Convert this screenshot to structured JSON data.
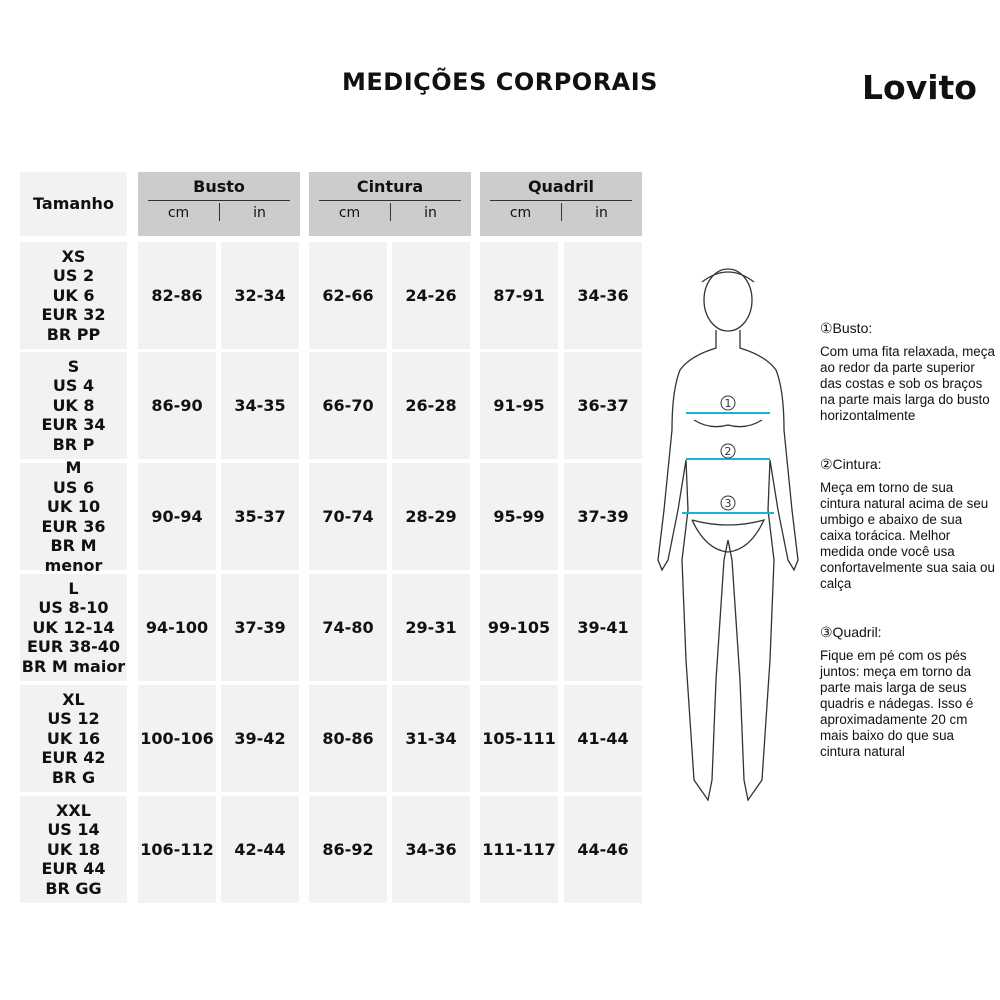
{
  "title": "MEDIÇÕES CORPORAIS",
  "brand": "Lovito",
  "header": {
    "size": "Tamanho",
    "groups": [
      "Busto",
      "Cintura",
      "Quadril"
    ],
    "cm": "cm",
    "in": "in"
  },
  "rows": [
    {
      "size": "XS\nUS 2\nUK 6\nEUR 32\nBR PP",
      "values": [
        "82-86",
        "32-34",
        "62-66",
        "24-26",
        "87-91",
        "34-36"
      ]
    },
    {
      "size": "S\nUS 4\nUK 8\nEUR 34\nBR P",
      "values": [
        "86-90",
        "34-35",
        "66-70",
        "26-28",
        "91-95",
        "36-37"
      ]
    },
    {
      "size": "M\nUS 6\nUK 10\nEUR 36\nBR M menor",
      "values": [
        "90-94",
        "35-37",
        "70-74",
        "28-29",
        "95-99",
        "37-39"
      ]
    },
    {
      "size": "L\nUS 8-10\nUK 12-14\nEUR 38-40\nBR M maior",
      "values": [
        "94-100",
        "37-39",
        "74-80",
        "29-31",
        "99-105",
        "39-41"
      ]
    },
    {
      "size": "XL\nUS 12\nUK 16\nEUR 42\nBR G",
      "values": [
        "100-106",
        "39-42",
        "80-86",
        "31-34",
        "105-111",
        "41-44"
      ]
    },
    {
      "size": "XXL\nUS 14\nUK 18\nEUR 44\nBR GG",
      "values": [
        "106-112",
        "42-44",
        "86-92",
        "34-36",
        "111-117",
        "44-46"
      ]
    }
  ],
  "figure": {
    "markers": [
      "1",
      "2",
      "3"
    ],
    "tape_color": "#1ab0e0"
  },
  "notes": [
    {
      "heading": "①Busto:",
      "text": "Com uma fita relaxada, meça ao redor da parte superior das costas e sob os braços na parte mais larga do busto horizontalmente"
    },
    {
      "heading": "②Cintura:",
      "text": "Meça em torno de sua cintura natural acima de seu umbigo e abaixo de sua caixa torácica. Melhor medida onde você usa confortavelmente sua saia ou calça"
    },
    {
      "heading": "③Quadril:",
      "text": "Fique em pé com os pés juntos: meça em torno da parte mais larga de seus quadris e nádegas. Isso é aproximadamente 20 cm mais baixo do que sua cintura natural"
    }
  ]
}
